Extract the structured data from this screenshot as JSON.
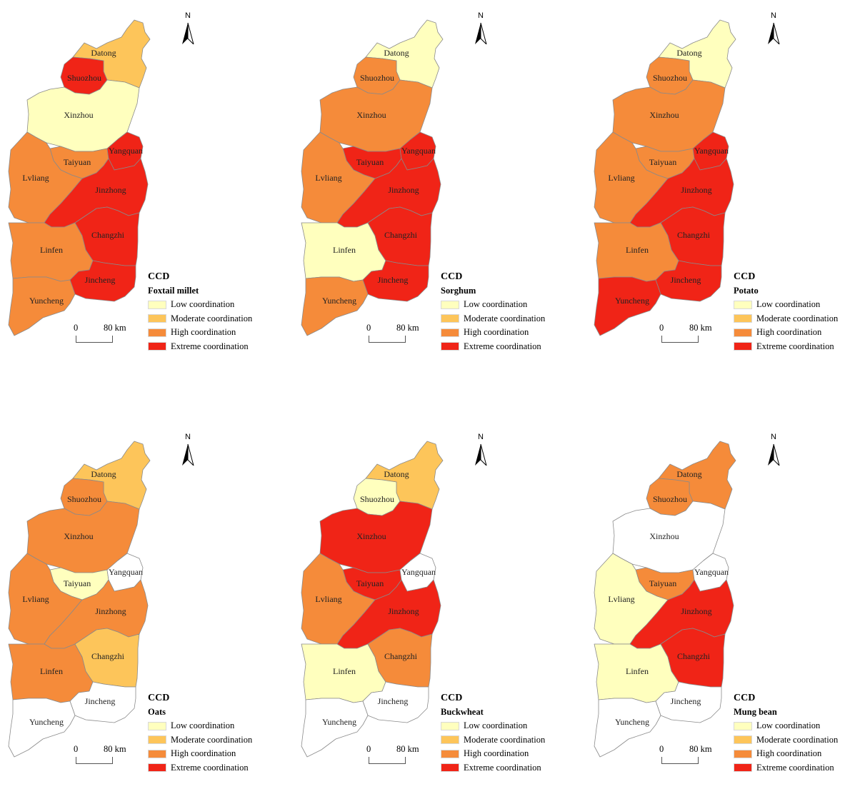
{
  "legend": {
    "title": "CCD",
    "classes": [
      {
        "key": "low",
        "label": "Low coordination",
        "color": "#ffffbe"
      },
      {
        "key": "moderate",
        "label": "Moderate coordination",
        "color": "#fdc55a"
      },
      {
        "key": "high",
        "label": "High coordination",
        "color": "#f58b3a"
      },
      {
        "key": "extreme",
        "label": "Extreme coordination",
        "color": "#f02417"
      }
    ],
    "nodata_color": "#ffffff"
  },
  "north_label": "N",
  "scale": {
    "zero": "0",
    "km": "80 km"
  },
  "region_names": [
    "Datong",
    "Shuozhou",
    "Xinzhou",
    "Taiyuan",
    "Yangquan",
    "Lvliang",
    "Jinzhong",
    "Linfen",
    "Changzhi",
    "Jincheng",
    "Yuncheng"
  ],
  "panels": [
    {
      "crop": "Foxtail millet",
      "values": {
        "Datong": "moderate",
        "Shuozhou": "extreme",
        "Xinzhou": "low",
        "Taiyuan": "high",
        "Yangquan": "extreme",
        "Lvliang": "high",
        "Jinzhong": "extreme",
        "Linfen": "high",
        "Changzhi": "extreme",
        "Jincheng": "extreme",
        "Yuncheng": "high"
      }
    },
    {
      "crop": "Sorghum",
      "values": {
        "Datong": "low",
        "Shuozhou": "high",
        "Xinzhou": "high",
        "Taiyuan": "extreme",
        "Yangquan": "extreme",
        "Lvliang": "high",
        "Jinzhong": "extreme",
        "Linfen": "low",
        "Changzhi": "extreme",
        "Jincheng": "extreme",
        "Yuncheng": "high"
      }
    },
    {
      "crop": "Potato",
      "values": {
        "Datong": "low",
        "Shuozhou": "high",
        "Xinzhou": "high",
        "Taiyuan": "high",
        "Yangquan": "extreme",
        "Lvliang": "high",
        "Jinzhong": "extreme",
        "Linfen": "high",
        "Changzhi": "extreme",
        "Jincheng": "extreme",
        "Yuncheng": "extreme"
      }
    },
    {
      "crop": "Oats",
      "values": {
        "Datong": "moderate",
        "Shuozhou": "high",
        "Xinzhou": "high",
        "Taiyuan": "low",
        "Yangquan": "none",
        "Lvliang": "high",
        "Jinzhong": "high",
        "Linfen": "high",
        "Changzhi": "moderate",
        "Jincheng": "none",
        "Yuncheng": "none"
      }
    },
    {
      "crop": "Buckwheat",
      "values": {
        "Datong": "moderate",
        "Shuozhou": "low",
        "Xinzhou": "extreme",
        "Taiyuan": "extreme",
        "Yangquan": "none",
        "Lvliang": "high",
        "Jinzhong": "extreme",
        "Linfen": "low",
        "Changzhi": "high",
        "Jincheng": "none",
        "Yuncheng": "none"
      }
    },
    {
      "crop": "Mung bean",
      "values": {
        "Datong": "high",
        "Shuozhou": "high",
        "Xinzhou": "none",
        "Taiyuan": "high",
        "Yangquan": "none",
        "Lvliang": "low",
        "Jinzhong": "extreme",
        "Linfen": "low",
        "Changzhi": "extreme",
        "Jincheng": "none",
        "Yuncheng": "none"
      }
    }
  ]
}
